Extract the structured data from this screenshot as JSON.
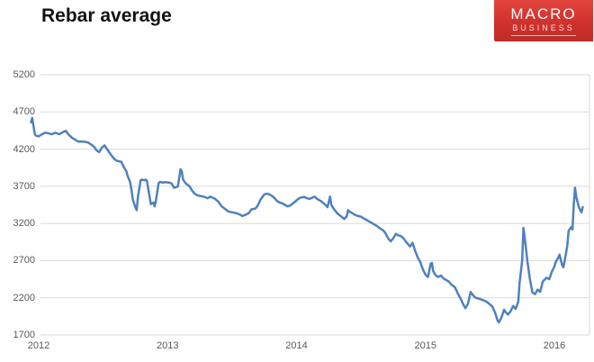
{
  "header": {
    "title": "Rebar average"
  },
  "logo": {
    "line1": "MACRO",
    "line2": "BUSINESS",
    "bg_color": "#cf322c",
    "text_color": "#ffffff"
  },
  "chart_data": {
    "type": "line",
    "title": "Rebar average",
    "xlabel": "",
    "ylabel": "",
    "legend": "none",
    "grid": true,
    "gridline_color": "#d9d9d9",
    "tick_label_color": "#595959",
    "x_axis": {
      "ticks": [
        2012,
        2013,
        2014,
        2015,
        2016
      ],
      "min": 2011.94,
      "max": 2016.3
    },
    "y_axis": {
      "ticks": [
        5200,
        4700,
        4200,
        3700,
        3200,
        2700,
        2200,
        1700
      ],
      "min": 1700,
      "max": 5200
    },
    "series": [
      {
        "name": "Rebar average",
        "color": "#4f81bd",
        "points": [
          [
            2011.94,
            4560
          ],
          [
            2011.95,
            4620
          ],
          [
            2011.97,
            4400
          ],
          [
            2011.98,
            4380
          ],
          [
            2012.0,
            4370
          ],
          [
            2012.02,
            4395
          ],
          [
            2012.05,
            4420
          ],
          [
            2012.08,
            4410
          ],
          [
            2012.1,
            4400
          ],
          [
            2012.13,
            4420
          ],
          [
            2012.16,
            4400
          ],
          [
            2012.19,
            4430
          ],
          [
            2012.21,
            4445
          ],
          [
            2012.23,
            4400
          ],
          [
            2012.26,
            4350
          ],
          [
            2012.29,
            4320
          ],
          [
            2012.31,
            4300
          ],
          [
            2012.35,
            4300
          ],
          [
            2012.38,
            4290
          ],
          [
            2012.4,
            4270
          ],
          [
            2012.43,
            4230
          ],
          [
            2012.45,
            4180
          ],
          [
            2012.47,
            4160
          ],
          [
            2012.49,
            4220
          ],
          [
            2012.51,
            4250
          ],
          [
            2012.53,
            4200
          ],
          [
            2012.55,
            4150
          ],
          [
            2012.57,
            4100
          ],
          [
            2012.59,
            4060
          ],
          [
            2012.61,
            4040
          ],
          [
            2012.64,
            4030
          ],
          [
            2012.66,
            3960
          ],
          [
            2012.68,
            3900
          ],
          [
            2012.69,
            3840
          ],
          [
            2012.71,
            3750
          ],
          [
            2012.72,
            3650
          ],
          [
            2012.73,
            3520
          ],
          [
            2012.75,
            3420
          ],
          [
            2012.76,
            3380
          ],
          [
            2012.77,
            3560
          ],
          [
            2012.79,
            3780
          ],
          [
            2012.8,
            3790
          ],
          [
            2012.82,
            3780
          ],
          [
            2012.83,
            3790
          ],
          [
            2012.84,
            3770
          ],
          [
            2012.86,
            3560
          ],
          [
            2012.87,
            3460
          ],
          [
            2012.89,
            3480
          ],
          [
            2012.9,
            3430
          ],
          [
            2012.91,
            3520
          ],
          [
            2012.93,
            3740
          ],
          [
            2012.94,
            3760
          ],
          [
            2012.96,
            3750
          ],
          [
            2012.98,
            3755
          ],
          [
            2013.01,
            3750
          ],
          [
            2013.03,
            3740
          ],
          [
            2013.05,
            3680
          ],
          [
            2013.07,
            3690
          ],
          [
            2013.08,
            3700
          ],
          [
            2013.1,
            3930
          ],
          [
            2013.11,
            3900
          ],
          [
            2013.12,
            3790
          ],
          [
            2013.14,
            3740
          ],
          [
            2013.17,
            3700
          ],
          [
            2013.19,
            3640
          ],
          [
            2013.21,
            3600
          ],
          [
            2013.23,
            3580
          ],
          [
            2013.25,
            3570
          ],
          [
            2013.28,
            3560
          ],
          [
            2013.31,
            3540
          ],
          [
            2013.33,
            3560
          ],
          [
            2013.36,
            3540
          ],
          [
            2013.39,
            3500
          ],
          [
            2013.42,
            3430
          ],
          [
            2013.45,
            3390
          ],
          [
            2013.47,
            3360
          ],
          [
            2013.5,
            3350
          ],
          [
            2013.53,
            3340
          ],
          [
            2013.56,
            3320
          ],
          [
            2013.58,
            3300
          ],
          [
            2013.61,
            3320
          ],
          [
            2013.63,
            3340
          ],
          [
            2013.65,
            3390
          ],
          [
            2013.68,
            3400
          ],
          [
            2013.7,
            3440
          ],
          [
            2013.72,
            3520
          ],
          [
            2013.75,
            3590
          ],
          [
            2013.77,
            3600
          ],
          [
            2013.79,
            3590
          ],
          [
            2013.81,
            3570
          ],
          [
            2013.83,
            3540
          ],
          [
            2013.85,
            3500
          ],
          [
            2013.87,
            3480
          ],
          [
            2013.89,
            3470
          ],
          [
            2013.91,
            3450
          ],
          [
            2013.93,
            3430
          ],
          [
            2013.95,
            3440
          ],
          [
            2013.98,
            3480
          ],
          [
            2014.0,
            3510
          ],
          [
            2014.02,
            3540
          ],
          [
            2014.04,
            3550
          ],
          [
            2014.06,
            3555
          ],
          [
            2014.08,
            3540
          ],
          [
            2014.1,
            3530
          ],
          [
            2014.12,
            3545
          ],
          [
            2014.14,
            3560
          ],
          [
            2014.16,
            3530
          ],
          [
            2014.19,
            3500
          ],
          [
            2014.21,
            3470
          ],
          [
            2014.23,
            3440
          ],
          [
            2014.24,
            3420
          ],
          [
            2014.26,
            3560
          ],
          [
            2014.27,
            3450
          ],
          [
            2014.28,
            3420
          ],
          [
            2014.3,
            3370
          ],
          [
            2014.32,
            3330
          ],
          [
            2014.35,
            3290
          ],
          [
            2014.37,
            3260
          ],
          [
            2014.39,
            3300
          ],
          [
            2014.4,
            3380
          ],
          [
            2014.41,
            3360
          ],
          [
            2014.44,
            3330
          ],
          [
            2014.46,
            3310
          ],
          [
            2014.48,
            3300
          ],
          [
            2014.5,
            3290
          ],
          [
            2014.52,
            3270
          ],
          [
            2014.54,
            3250
          ],
          [
            2014.56,
            3230
          ],
          [
            2014.58,
            3210
          ],
          [
            2014.6,
            3190
          ],
          [
            2014.62,
            3170
          ],
          [
            2014.65,
            3130
          ],
          [
            2014.67,
            3110
          ],
          [
            2014.69,
            3070
          ],
          [
            2014.71,
            3000
          ],
          [
            2014.73,
            2960
          ],
          [
            2014.75,
            3000
          ],
          [
            2014.77,
            3060
          ],
          [
            2014.79,
            3040
          ],
          [
            2014.81,
            3030
          ],
          [
            2014.83,
            3000
          ],
          [
            2014.85,
            2950
          ],
          [
            2014.88,
            2890
          ],
          [
            2014.9,
            2940
          ],
          [
            2014.92,
            2830
          ],
          [
            2014.94,
            2740
          ],
          [
            2014.96,
            2680
          ],
          [
            2014.98,
            2580
          ],
          [
            2015.0,
            2510
          ],
          [
            2015.02,
            2480
          ],
          [
            2015.04,
            2660
          ],
          [
            2015.05,
            2670
          ],
          [
            2015.06,
            2560
          ],
          [
            2015.08,
            2500
          ],
          [
            2015.1,
            2480
          ],
          [
            2015.12,
            2500
          ],
          [
            2015.14,
            2460
          ],
          [
            2015.16,
            2440
          ],
          [
            2015.18,
            2420
          ],
          [
            2015.2,
            2380
          ],
          [
            2015.23,
            2340
          ],
          [
            2015.25,
            2260
          ],
          [
            2015.27,
            2200
          ],
          [
            2015.29,
            2120
          ],
          [
            2015.31,
            2060
          ],
          [
            2015.33,
            2120
          ],
          [
            2015.35,
            2280
          ],
          [
            2015.37,
            2230
          ],
          [
            2015.39,
            2200
          ],
          [
            2015.41,
            2190
          ],
          [
            2015.43,
            2180
          ],
          [
            2015.46,
            2160
          ],
          [
            2015.48,
            2140
          ],
          [
            2015.5,
            2110
          ],
          [
            2015.52,
            2080
          ],
          [
            2015.54,
            2000
          ],
          [
            2015.56,
            1890
          ],
          [
            2015.57,
            1870
          ],
          [
            2015.59,
            1940
          ],
          [
            2015.61,
            2040
          ],
          [
            2015.62,
            2010
          ],
          [
            2015.64,
            1975
          ],
          [
            2015.66,
            2020
          ],
          [
            2015.68,
            2090
          ],
          [
            2015.7,
            2050
          ],
          [
            2015.72,
            2150
          ],
          [
            2015.73,
            2400
          ],
          [
            2015.75,
            2700
          ],
          [
            2015.76,
            3140
          ],
          [
            2015.77,
            3000
          ],
          [
            2015.79,
            2700
          ],
          [
            2015.81,
            2450
          ],
          [
            2015.83,
            2270
          ],
          [
            2015.85,
            2250
          ],
          [
            2015.87,
            2310
          ],
          [
            2015.89,
            2280
          ],
          [
            2015.91,
            2420
          ],
          [
            2015.94,
            2470
          ],
          [
            2015.96,
            2450
          ],
          [
            2015.98,
            2550
          ],
          [
            2016.0,
            2620
          ],
          [
            2016.01,
            2680
          ],
          [
            2016.03,
            2740
          ],
          [
            2016.04,
            2780
          ],
          [
            2016.06,
            2640
          ],
          [
            2016.07,
            2610
          ],
          [
            2016.08,
            2700
          ],
          [
            2016.1,
            2900
          ],
          [
            2016.11,
            3100
          ],
          [
            2016.13,
            3150
          ],
          [
            2016.14,
            3120
          ],
          [
            2016.15,
            3450
          ],
          [
            2016.16,
            3680
          ],
          [
            2016.17,
            3550
          ],
          [
            2016.19,
            3420
          ],
          [
            2016.2,
            3380
          ],
          [
            2016.21,
            3350
          ],
          [
            2016.22,
            3420
          ]
        ]
      }
    ]
  }
}
